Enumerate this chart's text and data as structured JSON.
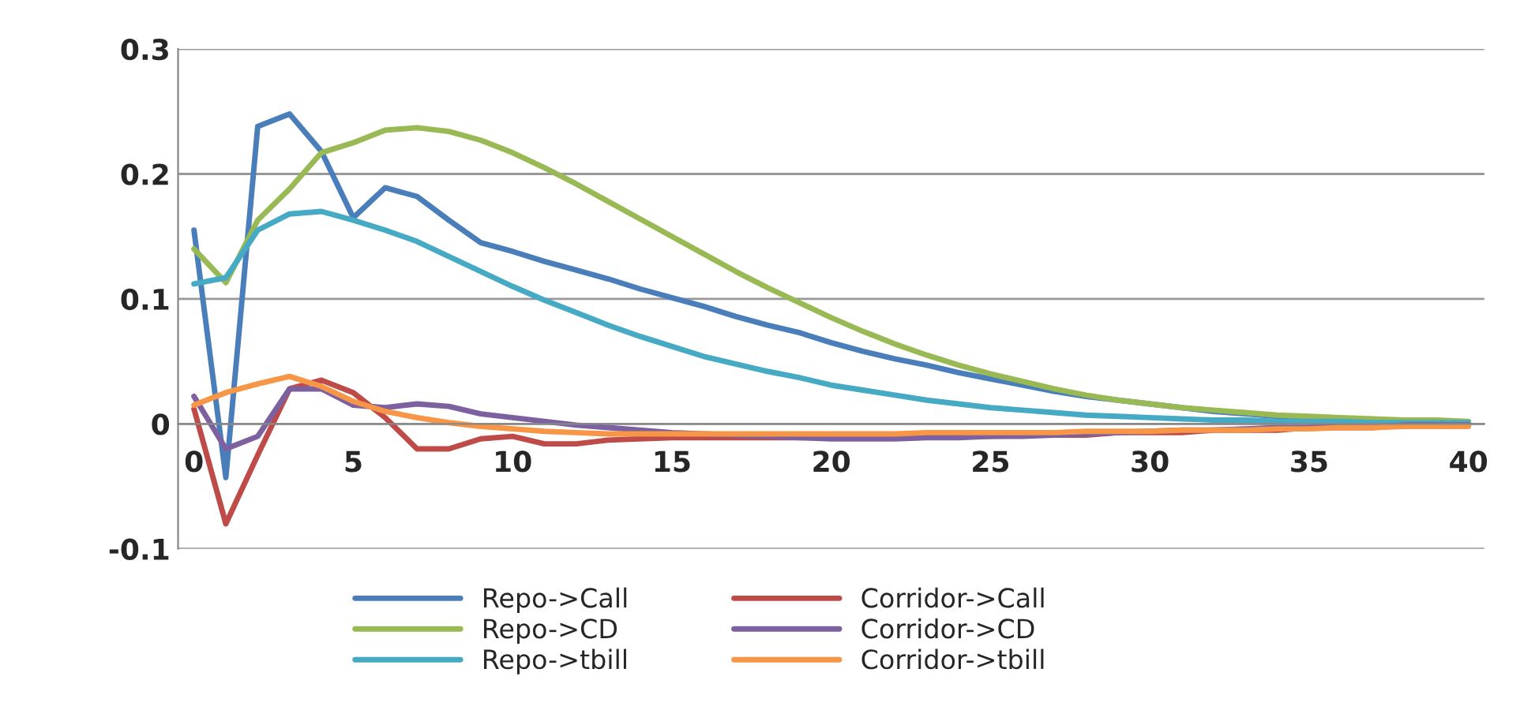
{
  "chart_data": {
    "type": "line",
    "x": [
      0,
      1,
      2,
      3,
      4,
      5,
      6,
      7,
      8,
      9,
      10,
      11,
      12,
      13,
      14,
      15,
      16,
      17,
      18,
      19,
      20,
      21,
      22,
      23,
      24,
      25,
      26,
      27,
      28,
      29,
      30,
      31,
      32,
      33,
      34,
      35,
      36,
      37,
      38,
      39,
      40
    ],
    "series": [
      {
        "name": "Repo->Call",
        "color": "#4a7ebb",
        "values": [
          0.155,
          -0.043,
          0.238,
          0.248,
          0.218,
          0.165,
          0.189,
          0.182,
          0.163,
          0.145,
          0.138,
          0.13,
          0.123,
          0.116,
          0.108,
          0.101,
          0.094,
          0.086,
          0.079,
          0.073,
          0.065,
          0.058,
          0.052,
          0.047,
          0.041,
          0.036,
          0.031,
          0.026,
          0.022,
          0.019,
          0.016,
          0.013,
          0.01,
          0.008,
          0.006,
          0.005,
          0.004,
          0.003,
          0.002,
          0.002,
          0.001
        ]
      },
      {
        "name": "Repo->CD",
        "color": "#98b954",
        "values": [
          0.14,
          0.113,
          0.163,
          0.188,
          0.217,
          0.225,
          0.235,
          0.237,
          0.234,
          0.227,
          0.217,
          0.205,
          0.192,
          0.178,
          0.164,
          0.15,
          0.136,
          0.122,
          0.109,
          0.097,
          0.085,
          0.074,
          0.064,
          0.055,
          0.047,
          0.04,
          0.034,
          0.028,
          0.023,
          0.019,
          0.016,
          0.013,
          0.011,
          0.009,
          0.007,
          0.006,
          0.005,
          0.004,
          0.003,
          0.003,
          0.002
        ]
      },
      {
        "name": "Repo->tbill",
        "color": "#46aac5",
        "values": [
          0.112,
          0.117,
          0.155,
          0.168,
          0.17,
          0.163,
          0.155,
          0.146,
          0.134,
          0.122,
          0.11,
          0.099,
          0.089,
          0.079,
          0.07,
          0.062,
          0.054,
          0.048,
          0.042,
          0.037,
          0.031,
          0.027,
          0.023,
          0.019,
          0.016,
          0.013,
          0.011,
          0.009,
          0.007,
          0.006,
          0.005,
          0.004,
          0.003,
          0.003,
          0.002,
          0.002,
          0.002,
          0.001,
          0.001,
          0.001,
          0.001
        ]
      },
      {
        "name": "Corridor->Call",
        "color": "#be4b48",
        "values": [
          0.012,
          -0.08,
          -0.025,
          0.028,
          0.035,
          0.025,
          0.005,
          -0.02,
          -0.02,
          -0.012,
          -0.01,
          -0.016,
          -0.016,
          -0.013,
          -0.012,
          -0.011,
          -0.011,
          -0.011,
          -0.011,
          -0.011,
          -0.011,
          -0.011,
          -0.011,
          -0.01,
          -0.01,
          -0.01,
          -0.009,
          -0.009,
          -0.009,
          -0.007,
          -0.007,
          -0.007,
          -0.005,
          -0.005,
          -0.005,
          -0.003,
          -0.003,
          -0.003,
          -0.001,
          -0.001,
          -0.001
        ]
      },
      {
        "name": "Corridor->CD",
        "color": "#7d60a0",
        "values": [
          0.022,
          -0.02,
          -0.01,
          0.028,
          0.028,
          0.015,
          0.013,
          0.016,
          0.014,
          0.008,
          0.005,
          0.002,
          -0.001,
          -0.003,
          -0.005,
          -0.007,
          -0.008,
          -0.009,
          -0.01,
          -0.011,
          -0.012,
          -0.012,
          -0.012,
          -0.011,
          -0.011,
          -0.01,
          -0.01,
          -0.009,
          -0.008,
          -0.007,
          -0.006,
          -0.005,
          -0.005,
          -0.004,
          -0.003,
          -0.003,
          -0.002,
          -0.002,
          -0.001,
          -0.001,
          -0.001
        ]
      },
      {
        "name": "Corridor->tbill",
        "color": "#f79646",
        "values": [
          0.015,
          0.025,
          0.032,
          0.038,
          0.03,
          0.018,
          0.01,
          0.005,
          0.001,
          -0.002,
          -0.004,
          -0.006,
          -0.007,
          -0.008,
          -0.008,
          -0.008,
          -0.008,
          -0.008,
          -0.008,
          -0.008,
          -0.008,
          -0.008,
          -0.008,
          -0.007,
          -0.007,
          -0.007,
          -0.007,
          -0.007,
          -0.006,
          -0.006,
          -0.006,
          -0.005,
          -0.005,
          -0.005,
          -0.004,
          -0.004,
          -0.003,
          -0.003,
          -0.002,
          -0.002,
          -0.002
        ]
      }
    ],
    "xlim": [
      -0.5,
      40.5
    ],
    "xticks": [
      0,
      5,
      10,
      15,
      20,
      25,
      30,
      35,
      40
    ],
    "ylim": [
      -0.1,
      0.3
    ],
    "yticks": [
      -0.1,
      0,
      0.1,
      0.2,
      0.3
    ],
    "grid": "y",
    "legend": "bottom",
    "marker": "none",
    "line_style": "solid"
  }
}
